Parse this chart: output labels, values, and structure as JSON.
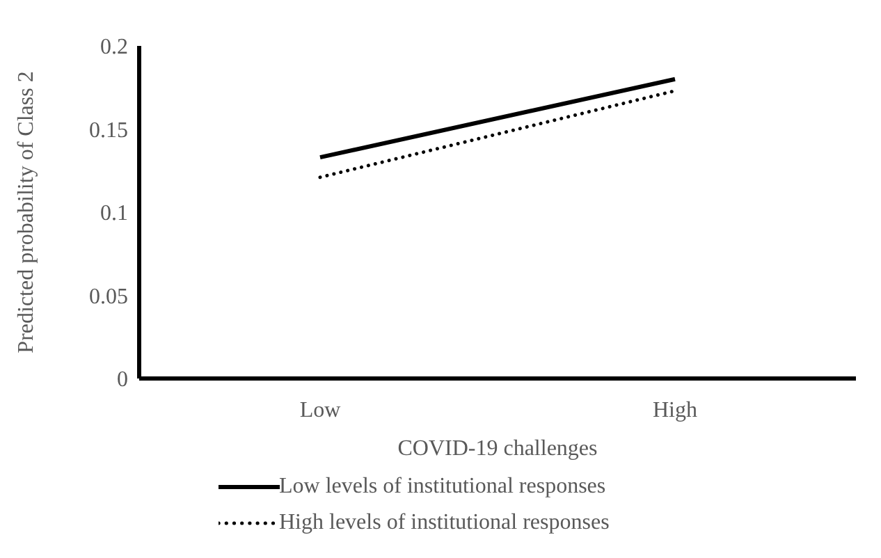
{
  "chart_data": {
    "type": "line",
    "xlabel": "COVID-19 challenges",
    "ylabel": "Predicted probability of Class 2",
    "categories": [
      "Low",
      "High"
    ],
    "series": [
      {
        "name": "Low levels of institutional responses",
        "color": "#000000",
        "values": [
          0.133,
          0.18
        ],
        "line_style": "solid"
      },
      {
        "name": "High levels of institutional responses",
        "color": "#000000",
        "values": [
          0.121,
          0.173
        ],
        "line_style": "dotted"
      }
    ],
    "ylim": [
      0,
      0.2
    ],
    "yticks": [
      0,
      0.05,
      0.1,
      0.15,
      0.2
    ],
    "grid": false,
    "legend": "bottom",
    "marker": "none"
  }
}
